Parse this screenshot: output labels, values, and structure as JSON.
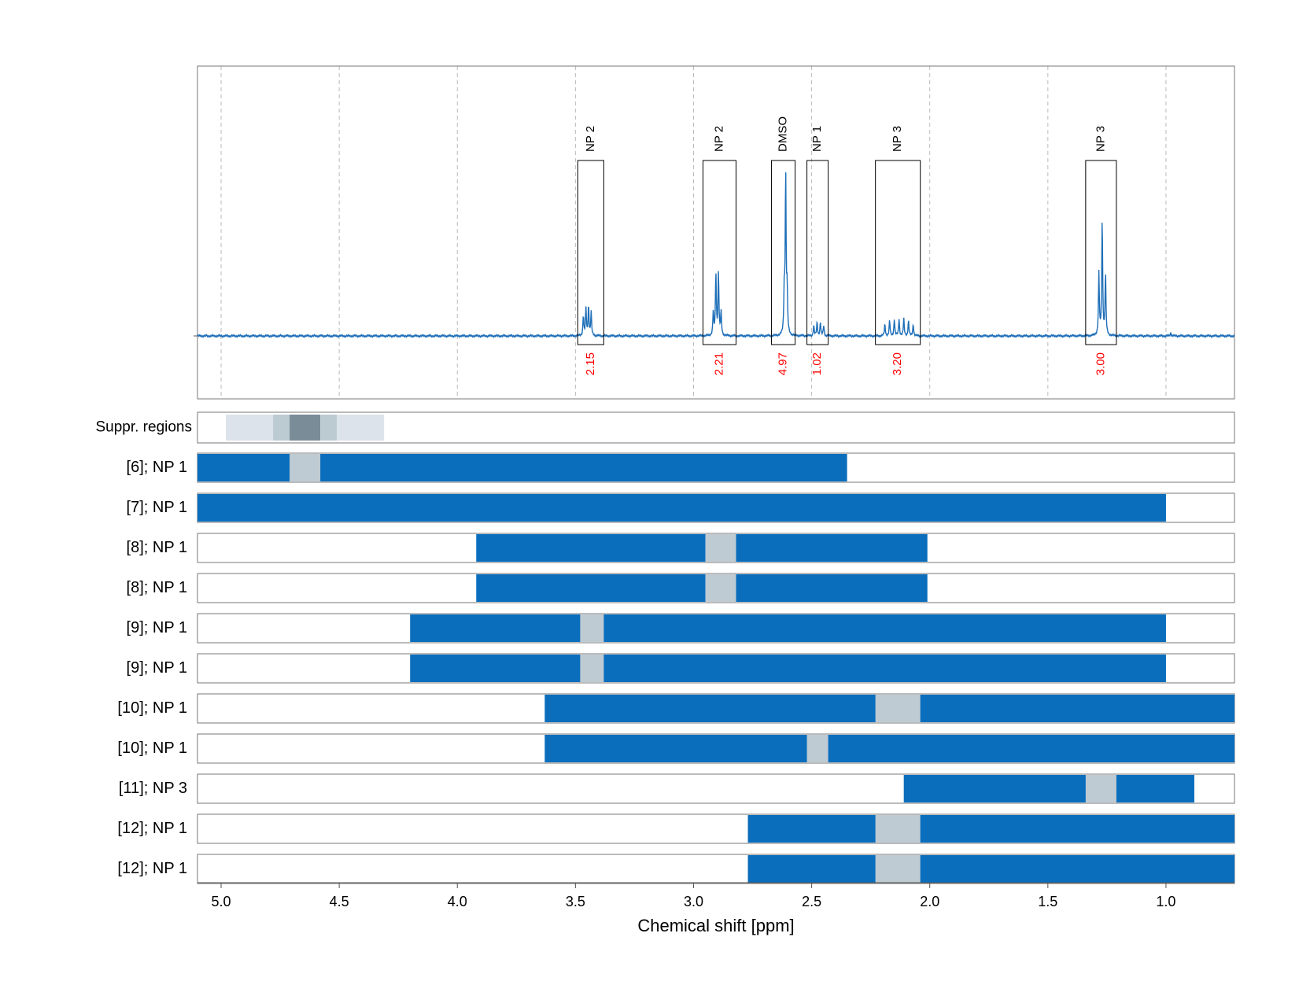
{
  "chart_data": {
    "type": "nmr-spectrum-with-region-bars",
    "xlabel": "Chemical shift [ppm]",
    "xaxis_reversed": true,
    "xlim": [
      5.1,
      0.71
    ],
    "xticks": [
      "5.0",
      "4.5",
      "4.0",
      "3.5",
      "3.0",
      "2.5",
      "2.0",
      "1.5",
      "1.0"
    ],
    "xtick_values": [
      5.0,
      4.5,
      4.0,
      3.5,
      3.0,
      2.5,
      2.0,
      1.5,
      1.0
    ],
    "grid": "vertical dashed",
    "colors": {
      "spectrum": "#1f6fb8",
      "bar": "#0a6ebd",
      "gap": "#bfcbd3",
      "integral_label": "#ff0000",
      "frame": "#777777",
      "grid": "#bbbbbb",
      "suppr_light": "#dce3ea",
      "suppr_mid": "#bccad2",
      "suppr_dark": "#7a8c98"
    },
    "baseline_region": [
      5.1,
      0.71
    ],
    "peaks": [
      {
        "center": 3.45,
        "heights": [
          0.14,
          0.18,
          0.16,
          0.12
        ],
        "spacing": 0.011
      },
      {
        "center": 2.9,
        "heights": [
          0.14,
          0.37,
          0.37,
          0.14
        ],
        "spacing": 0.011
      },
      {
        "center": 2.61,
        "heights": [
          0.25,
          0.95,
          0.25
        ],
        "spacing": 0.006
      },
      {
        "center": 2.47,
        "heights": [
          0.06,
          0.08,
          0.08,
          0.06
        ],
        "spacing": 0.014
      },
      {
        "center": 2.13,
        "heights": [
          0.07,
          0.09,
          0.1,
          0.1,
          0.1,
          0.09,
          0.07
        ],
        "spacing": 0.02
      },
      {
        "center": 1.27,
        "heights": [
          0.37,
          0.7,
          0.37
        ],
        "spacing": 0.014
      },
      {
        "center": 0.98,
        "heights": [
          0.02
        ],
        "spacing": 0.01
      }
    ],
    "annotations": [
      {
        "label": "NP 2",
        "integral": "2.15",
        "from": 3.49,
        "to": 3.38
      },
      {
        "label": "NP 2",
        "integral": "2.21",
        "from": 2.96,
        "to": 2.82
      },
      {
        "label": "DMSO",
        "integral": "4.97",
        "from": 2.67,
        "to": 2.57
      },
      {
        "label": "NP 1",
        "integral": "1.02",
        "from": 2.52,
        "to": 2.43
      },
      {
        "label": "NP 3",
        "integral": "3.20",
        "from": 2.23,
        "to": 2.04
      },
      {
        "label": "NP 3",
        "integral": "3.00",
        "from": 1.34,
        "to": 1.21
      }
    ],
    "suppression_row": {
      "label": "Suppr. regions",
      "segments": [
        {
          "from": 4.98,
          "to": 4.78,
          "shade": "light"
        },
        {
          "from": 4.78,
          "to": 4.71,
          "shade": "mid"
        },
        {
          "from": 4.71,
          "to": 4.58,
          "shade": "dark"
        },
        {
          "from": 4.58,
          "to": 4.51,
          "shade": "mid"
        },
        {
          "from": 4.51,
          "to": 4.31,
          "shade": "light"
        }
      ]
    },
    "rows": [
      {
        "label": "[6]; NP 1",
        "from": 5.1,
        "to": 2.35,
        "gap": [
          4.71,
          4.58
        ]
      },
      {
        "label": "[7]; NP 1",
        "from": 5.1,
        "to": 1.0,
        "gap": null
      },
      {
        "label": "[8]; NP 1",
        "from": 3.92,
        "to": 2.01,
        "gap": [
          2.95,
          2.82
        ]
      },
      {
        "label": "[8]; NP 1",
        "from": 3.92,
        "to": 2.01,
        "gap": [
          2.95,
          2.82
        ]
      },
      {
        "label": "[9]; NP 1",
        "from": 4.2,
        "to": 1.0,
        "gap": [
          3.48,
          3.38
        ]
      },
      {
        "label": "[9]; NP 1",
        "from": 4.2,
        "to": 1.0,
        "gap": [
          3.48,
          3.38
        ]
      },
      {
        "label": "[10]; NP 1",
        "from": 3.63,
        "to": 0.71,
        "gap": [
          2.23,
          2.04
        ]
      },
      {
        "label": "[10]; NP 1",
        "from": 3.63,
        "to": 0.71,
        "gap": [
          2.52,
          2.43
        ]
      },
      {
        "label": "[11]; NP 3",
        "from": 2.11,
        "to": 0.88,
        "gap": [
          1.34,
          1.21
        ]
      },
      {
        "label": "[12]; NP 1",
        "from": 2.77,
        "to": 0.71,
        "gap": [
          2.23,
          2.04
        ]
      },
      {
        "label": "[12]; NP 1",
        "from": 2.77,
        "to": 0.71,
        "gap": [
          2.23,
          2.04
        ]
      }
    ]
  }
}
